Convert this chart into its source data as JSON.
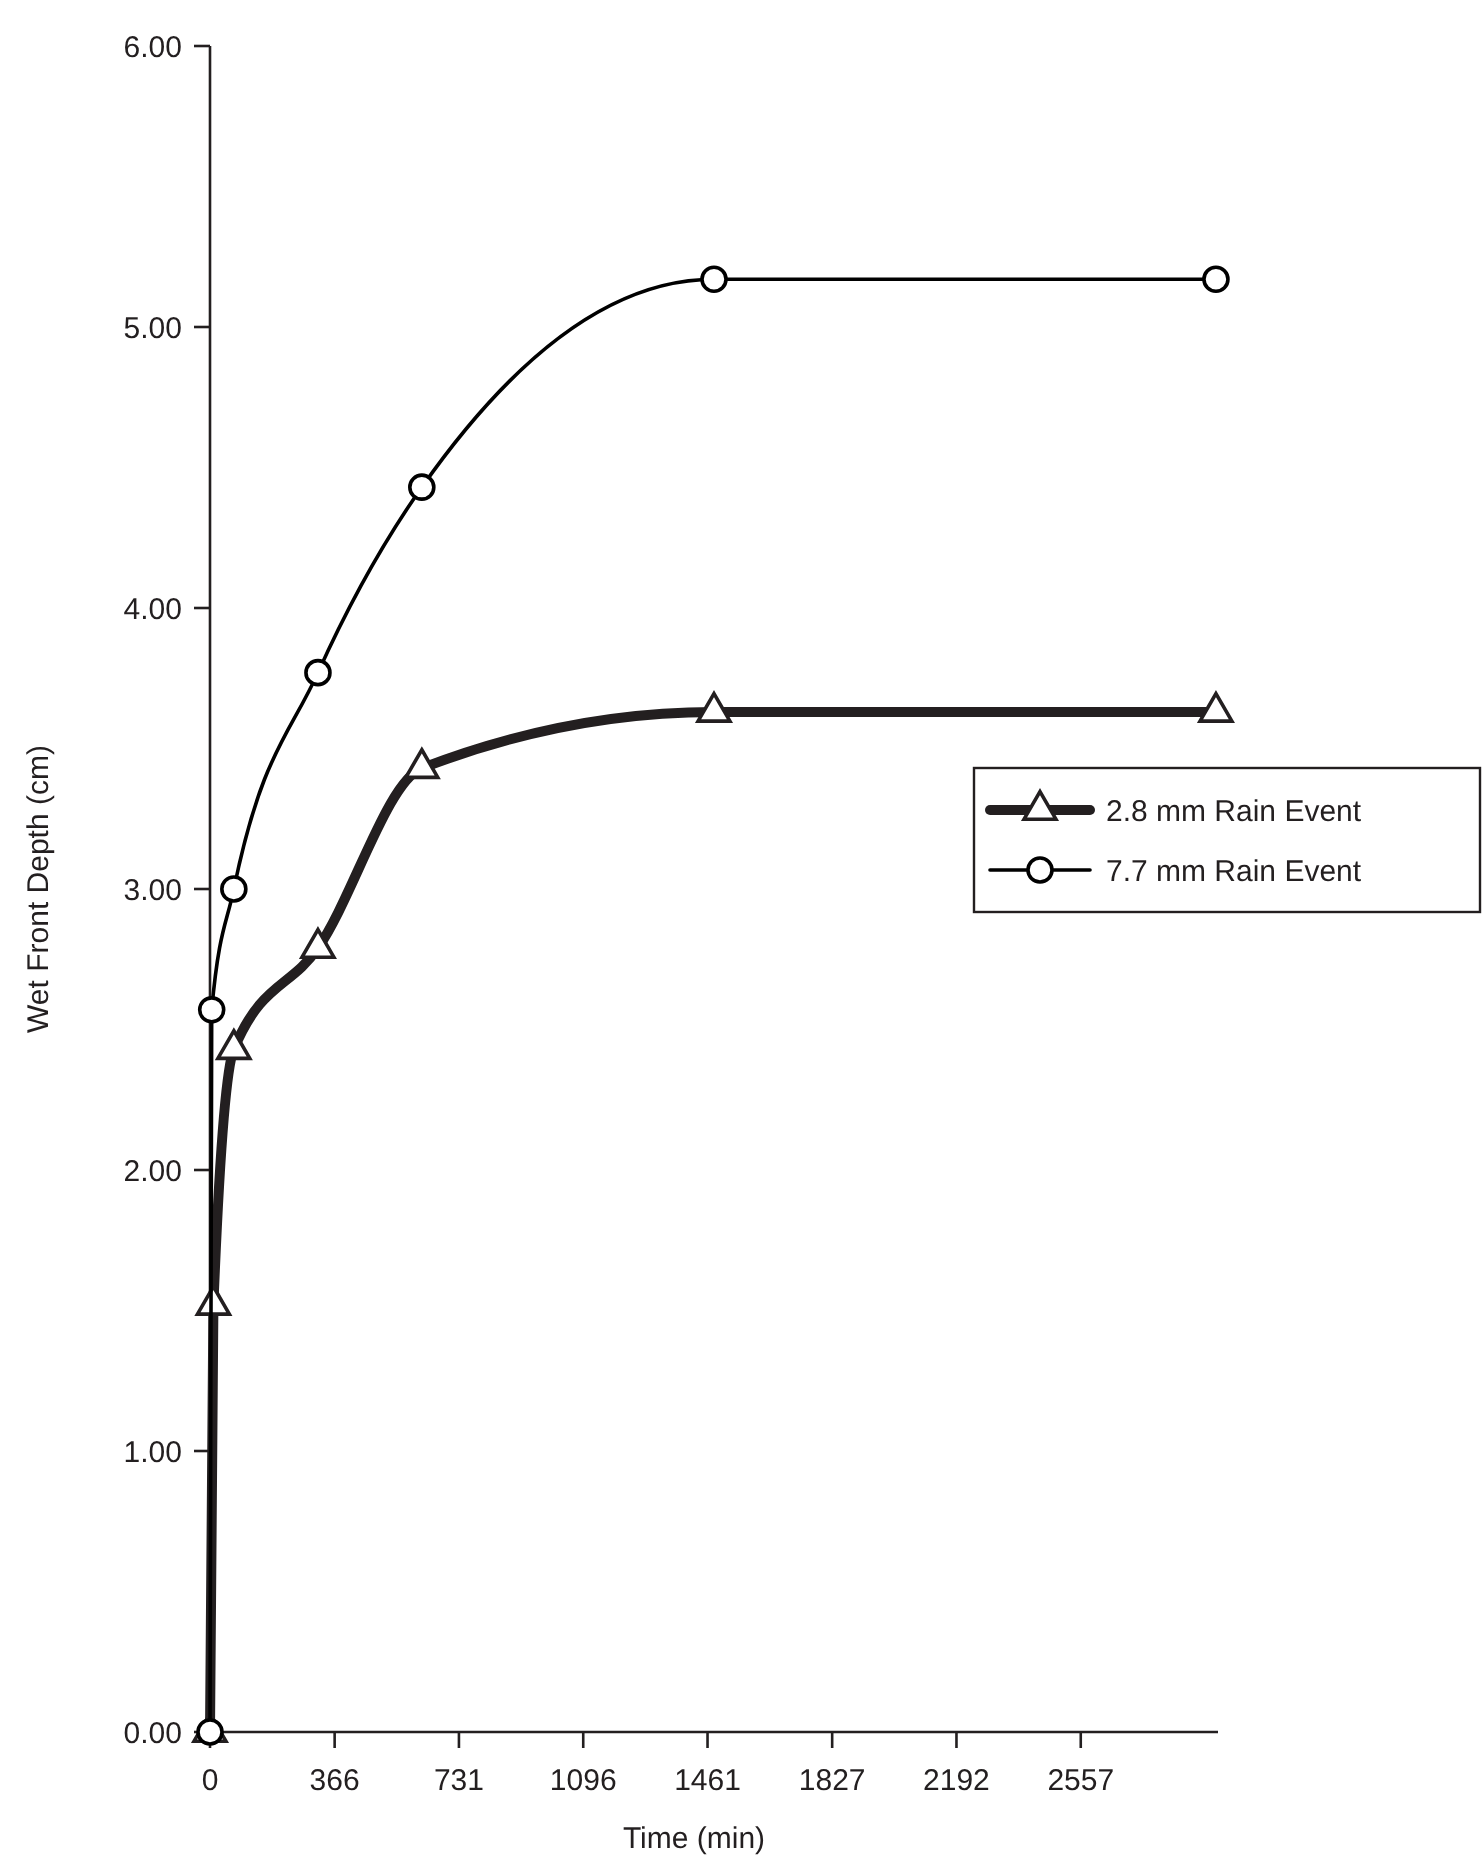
{
  "chart_data": {
    "type": "line",
    "xlabel": "Time (min)",
    "ylabel": "Wet Front Depth (cm)",
    "xlim": [
      0,
      2960
    ],
    "xticks": [
      0,
      366,
      731,
      1096,
      1461,
      1827,
      2192,
      2557
    ],
    "ylim": [
      0,
      6
    ],
    "yticks": [
      {
        "value": 0,
        "label": "0.00"
      },
      {
        "value": 1,
        "label": "1.00"
      },
      {
        "value": 2,
        "label": "2.00"
      },
      {
        "value": 3,
        "label": "3.00"
      },
      {
        "value": 4,
        "label": "4.00"
      },
      {
        "value": 5,
        "label": "5.00"
      },
      {
        "value": 6,
        "label": "6.00"
      }
    ],
    "legend": "right",
    "grid": false,
    "series": [
      {
        "name": "2.8 mm Rain Event",
        "color": "#231f20",
        "marker": "triangle",
        "x": [
          0,
          10,
          70,
          317,
          622,
          1480,
          2954
        ],
        "values": [
          0,
          1.52,
          2.43,
          2.79,
          3.43,
          3.63,
          3.63
        ]
      },
      {
        "name": "7.7 mm Rain Event",
        "color": "#000000",
        "marker": "circle",
        "x": [
          0,
          5,
          70,
          317,
          622,
          1480,
          2954
        ],
        "values": [
          0,
          2.57,
          3.0,
          3.77,
          4.43,
          5.17,
          5.17
        ]
      }
    ]
  }
}
